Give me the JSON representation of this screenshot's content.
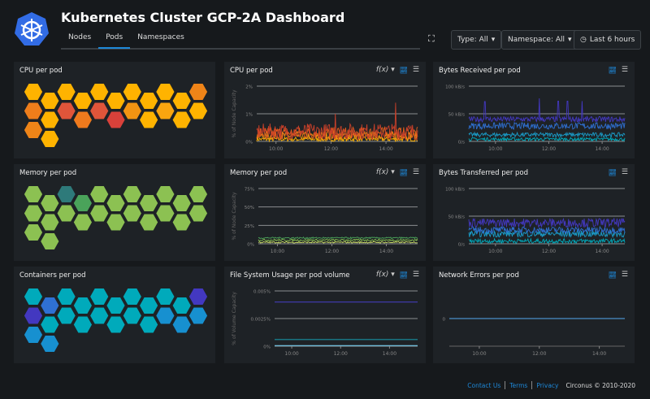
{
  "header": {
    "title": "Kubernetes Cluster GCP-2A Dashboard",
    "tabs": [
      "Nodes",
      "Pods",
      "Namespaces"
    ],
    "active_tab": "Pods",
    "type_filter": "Type: All",
    "namespace_filter": "Namespace: All",
    "time_range": "Last 6 hours"
  },
  "colors": {
    "accent": "#1e88d8",
    "panel_bg": "#1e2226",
    "page_bg": "#16191c"
  },
  "honeycombs": [
    {
      "title": "CPU per pod",
      "columns": [
        [
          "#ffb300",
          "#ee7d1b",
          "#ee8418"
        ],
        [
          "#ffb300",
          "#ffb300",
          "#ffb300"
        ],
        [
          "#ffb300",
          "#e0553a"
        ],
        [
          "#ffb300",
          "#ef7a1d"
        ],
        [
          "#ffb300",
          "#e0553a"
        ],
        [
          "#ffb300",
          "#d9413a"
        ],
        [
          "#ffb300",
          "#f39412"
        ],
        [
          "#ffb300",
          "#ffb300"
        ],
        [
          "#ffb300",
          "#faa50f"
        ],
        [
          "#ffb300",
          "#ffb300"
        ],
        [
          "#ef8418",
          "#ffb300"
        ]
      ]
    },
    {
      "title": "Memory per pod",
      "columns": [
        [
          "#8cc152",
          "#8cc152",
          "#8cc152"
        ],
        [
          "#8cc152",
          "#8cc152",
          "#8cc152"
        ],
        [
          "#2e7a7a",
          "#8cc152"
        ],
        [
          "#4aa35a",
          "#8cc152"
        ],
        [
          "#8cc152",
          "#8cc152"
        ],
        [
          "#8cc152",
          "#8cc152"
        ],
        [
          "#8cc152",
          "#8cc152"
        ],
        [
          "#8cc152",
          "#8cc152"
        ],
        [
          "#8cc152",
          "#8cc152"
        ],
        [
          "#8cc152",
          "#8cc152"
        ],
        [
          "#8cc152",
          "#8cc152"
        ]
      ]
    },
    {
      "title": "Containers per pod",
      "columns": [
        [
          "#00aabb",
          "#4338c0",
          "#1790d0"
        ],
        [
          "#2f70d3",
          "#00aabb",
          "#1790d0"
        ],
        [
          "#00aabb",
          "#00aabb"
        ],
        [
          "#00aabb",
          "#00aabb"
        ],
        [
          "#00aabb",
          "#00aabb"
        ],
        [
          "#00aabb",
          "#00aabb"
        ],
        [
          "#00aabb",
          "#00aabb"
        ],
        [
          "#00aabb",
          "#00aabb"
        ],
        [
          "#00aabb",
          "#1790d0"
        ],
        [
          "#00aabb",
          "#1790d0"
        ],
        [
          "#4338c0",
          "#1790d0"
        ]
      ]
    }
  ],
  "chart_data": [
    {
      "id": "cpu",
      "type": "line",
      "title": "CPU per pod",
      "ylabel": "% of Node Capacity",
      "ylim": [
        0,
        2
      ],
      "yticks": [
        "0%",
        "1%",
        "2%"
      ],
      "ytick_values": [
        0,
        1,
        2
      ],
      "xlim": [
        9.3,
        15.15
      ],
      "xticks": [
        "10:00",
        "12:00",
        "14:00"
      ],
      "xtick_values": [
        10,
        12,
        14
      ],
      "fx": "f(x)",
      "series": [
        {
          "color": "#ffb300",
          "level": 0.08,
          "noise": 0.08
        },
        {
          "color": "#f39412",
          "level": 0.2,
          "noise": 0.15
        },
        {
          "color": "#e8601c",
          "level": 0.3,
          "noise": 0.22
        },
        {
          "color": "#c8402a",
          "level": 0.35,
          "noise": 0.3,
          "spikes": [
            [
              12.15,
              1.0
            ],
            [
              14.35,
              1.4
            ]
          ]
        }
      ]
    },
    {
      "id": "rx",
      "type": "line",
      "title": "Bytes Received per pod",
      "ylim": [
        0,
        100
      ],
      "yticks": [
        "0/s",
        "50 kB/s",
        "100 kB/s"
      ],
      "ytick_values": [
        0,
        50,
        100
      ],
      "xlim": [
        9.0,
        14.85
      ],
      "xticks": [
        "10:00",
        "12:00",
        "14:00"
      ],
      "xtick_values": [
        10,
        12,
        14
      ],
      "series": [
        {
          "color": "#00aabb",
          "level": 4,
          "noise": 3
        },
        {
          "color": "#1a9cc8",
          "level": 12,
          "noise": 4
        },
        {
          "color": "#2f70d3",
          "level": 28,
          "noise": 6
        },
        {
          "color": "#4338c0",
          "level": 40,
          "noise": 5,
          "spikes": [
            [
              9.6,
              72
            ],
            [
              11.65,
              78
            ],
            [
              12.35,
              73
            ],
            [
              12.7,
              73
            ],
            [
              13.25,
              73
            ]
          ]
        }
      ]
    },
    {
      "id": "mem",
      "type": "line",
      "title": "Memory per pod",
      "ylabel": "% of Node Capacity",
      "ylim": [
        0,
        75
      ],
      "yticks": [
        "0%",
        "25%",
        "50%",
        "75%"
      ],
      "ytick_values": [
        0,
        25,
        50,
        75
      ],
      "xlim": [
        9.3,
        15.15
      ],
      "xticks": [
        "10:00",
        "12:00",
        "14:00"
      ],
      "xtick_values": [
        10,
        12,
        14
      ],
      "fx": "f(x)",
      "series": [
        {
          "color": "#cfe06a",
          "level": 2,
          "noise": 1
        },
        {
          "color": "#8cc152",
          "level": 5,
          "noise": 1.2
        },
        {
          "color": "#4aa35a",
          "level": 8,
          "noise": 1
        }
      ]
    },
    {
      "id": "tx",
      "type": "line",
      "title": "Bytes Transferred per pod",
      "ylim": [
        0,
        100
      ],
      "yticks": [
        "0/s",
        "50 kB/s",
        "100 kB/s"
      ],
      "ytick_values": [
        0,
        50,
        100
      ],
      "xlim": [
        9.0,
        14.85
      ],
      "xticks": [
        "10:00",
        "12:00",
        "14:00"
      ],
      "xtick_values": [
        10,
        12,
        14
      ],
      "series": [
        {
          "color": "#00aabb",
          "level": 5,
          "noise": 4
        },
        {
          "color": "#1a9cc8",
          "level": 18,
          "noise": 6
        },
        {
          "color": "#2f70d3",
          "level": 25,
          "noise": 6
        },
        {
          "color": "#4338c0",
          "level": 38,
          "noise": 8
        }
      ]
    },
    {
      "id": "fs",
      "type": "line",
      "title": "File System Usage per pod volume",
      "ylabel": "% of Volume Capacity",
      "ylim": [
        0,
        0.005
      ],
      "yticks": [
        "0%",
        "0.0025%",
        "0.005%"
      ],
      "ytick_values": [
        0,
        0.0025,
        0.005
      ],
      "xlim": [
        9.3,
        15.15
      ],
      "xticks": [
        "10:00",
        "12:00",
        "14:00"
      ],
      "xtick_values": [
        10,
        12,
        14
      ],
      "fx": "f(x)",
      "series": [
        {
          "color": "#3f3aa8",
          "level": 0.004,
          "noise": 0
        },
        {
          "color": "#1790a0",
          "level": 0.0006,
          "noise": 0
        },
        {
          "color": "#6ec6e6",
          "level": 5e-05,
          "noise": 0
        }
      ]
    },
    {
      "id": "neterr",
      "type": "line",
      "title": "Network Errors per pod",
      "ylim": [
        -1,
        1
      ],
      "yticks": [
        "0"
      ],
      "ytick_values": [
        0
      ],
      "xlim": [
        9.0,
        14.85
      ],
      "xticks": [
        "10:00",
        "12:00",
        "14:00"
      ],
      "xtick_values": [
        10,
        12,
        14
      ],
      "series": [
        {
          "color": "#4a90c8",
          "level": 0,
          "noise": 0
        }
      ]
    }
  ],
  "footer": {
    "contact": "Contact Us",
    "terms": "Terms",
    "privacy": "Privacy",
    "copyright": "Circonus © 2010-2020"
  }
}
